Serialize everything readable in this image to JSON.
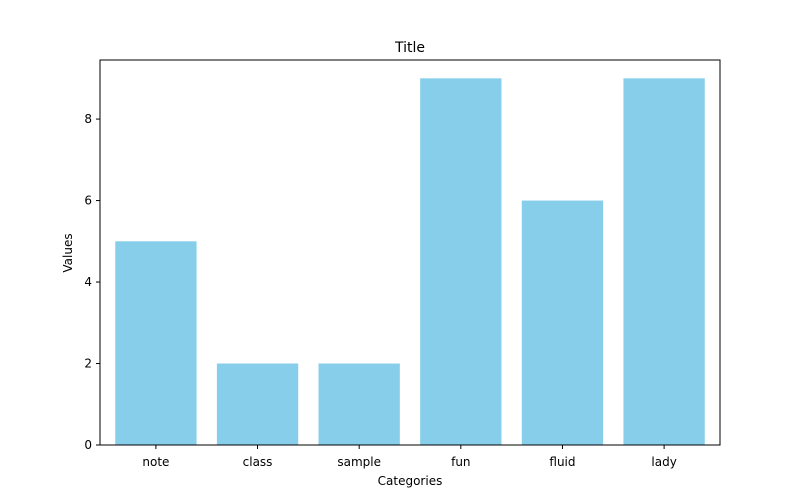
{
  "chart_data": {
    "type": "bar",
    "title": "Title",
    "xlabel": "Categories",
    "ylabel": "Values",
    "categories": [
      "note",
      "class",
      "sample",
      "fun",
      "fluid",
      "lady"
    ],
    "values": [
      5,
      2,
      2,
      9,
      6,
      9
    ],
    "ylim": [
      0,
      9.45
    ],
    "yticks": [
      0,
      2,
      4,
      6,
      8
    ],
    "bar_color": "#87ceeb",
    "grid": false,
    "legend": "none"
  }
}
